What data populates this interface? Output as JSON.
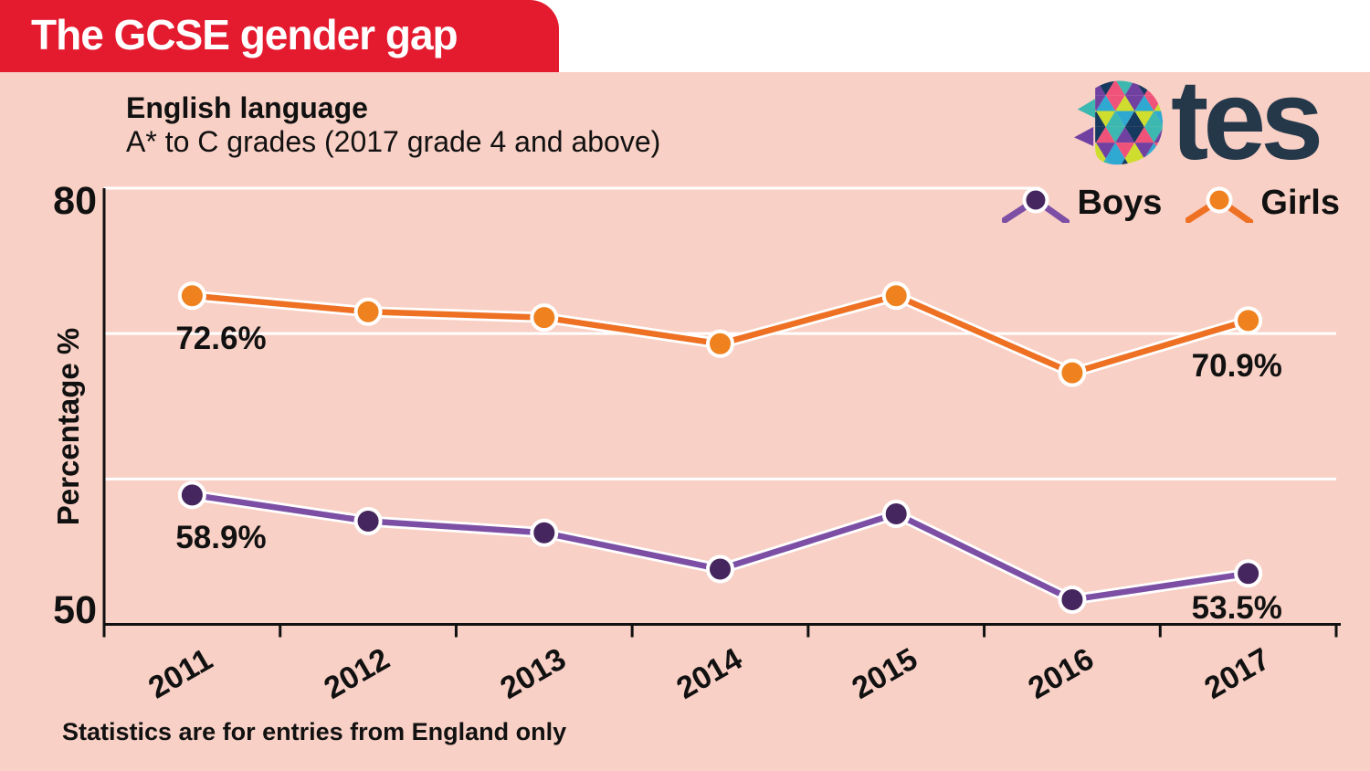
{
  "header": {
    "title": "The GCSE gender gap"
  },
  "subtitle": {
    "line1": "English language",
    "line2": "A* to C grades (2017 grade 4 and above)"
  },
  "brand": {
    "logo_text": "tes",
    "logo_navy": "#24384a",
    "mosaic_colors": [
      "#7141a1",
      "#3cb8b0",
      "#cfdd2e",
      "#f0537a",
      "#16395f",
      "#2fa9d2"
    ]
  },
  "colors": {
    "banner_red": "#e41b2f",
    "background_pink": "#f9d0c5",
    "grid_white": "#ffffff",
    "axis_black": "#111111"
  },
  "legend": {
    "items": [
      {
        "label": "Boys"
      },
      {
        "label": "Girls"
      }
    ]
  },
  "footer": {
    "note": "Statistics are for entries from England only"
  },
  "chart_data": {
    "type": "line",
    "title": "The GCSE gender gap — English language",
    "subtitle": "A* to C grades (2017 grade 4 and above)",
    "categories": [
      "2011",
      "2012",
      "2013",
      "2014",
      "2015",
      "2016",
      "2017"
    ],
    "series": [
      {
        "name": "Girls",
        "color": "#ee7023",
        "marker_color": "#f0811f",
        "values": [
          72.6,
          71.5,
          71.1,
          69.3,
          72.6,
          67.3,
          70.9
        ]
      },
      {
        "name": "Boys",
        "color": "#7c4fa5",
        "marker_color": "#46265e",
        "values": [
          58.9,
          57.1,
          56.3,
          53.8,
          57.6,
          51.7,
          53.5
        ]
      }
    ],
    "point_labels": [
      {
        "id": "girls-2011",
        "series": "Girls",
        "category": "2011",
        "text": "72.6%"
      },
      {
        "id": "girls-2017",
        "series": "Girls",
        "category": "2017",
        "text": "70.9%"
      },
      {
        "id": "boys-2011",
        "series": "Boys",
        "category": "2011",
        "text": "58.9%"
      },
      {
        "id": "boys-2017",
        "series": "Boys",
        "category": "2017",
        "text": "53.5%"
      }
    ],
    "ylabel": "Percentage %",
    "xlabel": "",
    "ylim": [
      50,
      80
    ],
    "ytick_labels_shown": [
      "80",
      "50"
    ],
    "gridlines_at": [
      80,
      70,
      60
    ],
    "grid": true,
    "legend_position": "top-right"
  }
}
